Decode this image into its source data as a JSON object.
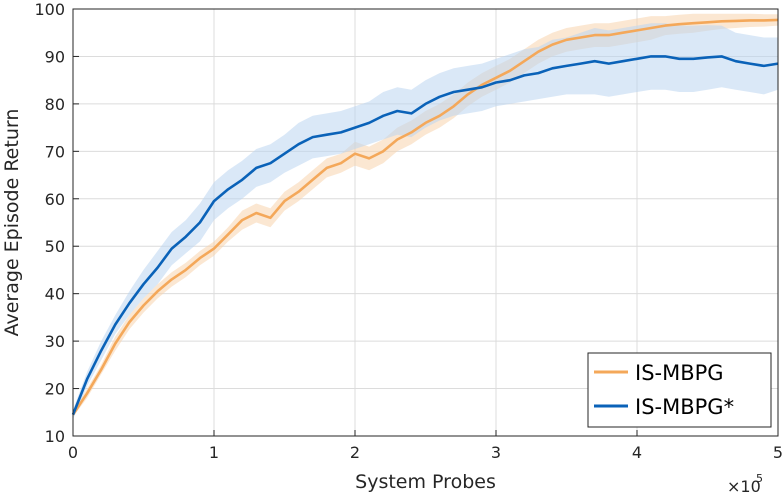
{
  "chart_data": {
    "type": "line",
    "xlabel": "System Probes",
    "ylabel": "Average Episode Return",
    "xlim": [
      0,
      5
    ],
    "ylim": [
      10,
      100
    ],
    "x_multiplier": {
      "base": "×10",
      "exponent": "5"
    },
    "xticks": [
      "0",
      "1",
      "2",
      "3",
      "4",
      "5"
    ],
    "yticks": [
      "10",
      "20",
      "30",
      "40",
      "50",
      "60",
      "70",
      "80",
      "90",
      "100"
    ],
    "grid": true,
    "legend_position": "bottom-right",
    "colors": {
      "IS-MBPG": "#f4a85a",
      "IS-MBPG*": "#0a62b8",
      "IS-MBPG_band": "#f8d3ad",
      "IS-MBPG*_band": "#bcd6f0"
    },
    "x": [
      0,
      0.1,
      0.2,
      0.3,
      0.4,
      0.5,
      0.6,
      0.7,
      0.8,
      0.9,
      1.0,
      1.1,
      1.2,
      1.3,
      1.4,
      1.5,
      1.6,
      1.7,
      1.8,
      1.9,
      2.0,
      2.1,
      2.2,
      2.3,
      2.4,
      2.5,
      2.6,
      2.7,
      2.8,
      2.9,
      3.0,
      3.1,
      3.2,
      3.3,
      3.4,
      3.5,
      3.6,
      3.7,
      3.8,
      3.9,
      4.0,
      4.1,
      4.2,
      4.3,
      4.4,
      4.5,
      4.6,
      4.7,
      4.8,
      4.9,
      5.0
    ],
    "series": [
      {
        "name": "IS-MBPG",
        "values": [
          14.5,
          19,
          24,
          29.5,
          34,
          37.5,
          40.5,
          43,
          45,
          47.5,
          49.5,
          52.5,
          55.5,
          57,
          56,
          59.5,
          61.5,
          64,
          66.5,
          67.5,
          69.5,
          68.5,
          70,
          72.5,
          74,
          76,
          77.5,
          79.5,
          82,
          84,
          85.5,
          87,
          89,
          91,
          92.5,
          93.5,
          94,
          94.5,
          94.5,
          95,
          95.5,
          96,
          96.5,
          96.8,
          97,
          97.2,
          97.4,
          97.5,
          97.6,
          97.6,
          97.7
        ],
        "lower": [
          14,
          18,
          23,
          28,
          32.5,
          36,
          39,
          41.5,
          43.5,
          46,
          48,
          51,
          53.5,
          55,
          54,
          57.5,
          59.5,
          62,
          64.5,
          65.5,
          67,
          66,
          67.5,
          70,
          71.5,
          73.5,
          75,
          77,
          79.5,
          81.5,
          83,
          84.5,
          86.5,
          88.5,
          90,
          91,
          91.5,
          92,
          92,
          92.5,
          93,
          93.5,
          94.5,
          94.8,
          95,
          95.4,
          95.8,
          96,
          96.2,
          96.3,
          96.5
        ],
        "upper": [
          15,
          20,
          25,
          31,
          35.5,
          39,
          42,
          44.5,
          46.5,
          49,
          51,
          54,
          57.5,
          59,
          58,
          61.5,
          63.5,
          66,
          68.5,
          69.5,
          72,
          71,
          72.5,
          75,
          76.5,
          78.5,
          80,
          82,
          84.5,
          86.5,
          88,
          89.5,
          91.5,
          93.5,
          95,
          96,
          96.5,
          97,
          97,
          97.5,
          98,
          98.5,
          98.5,
          98.8,
          99,
          99,
          99,
          99,
          99,
          98.9,
          98.9
        ]
      },
      {
        "name": "IS-MBPG*",
        "values": [
          14.5,
          22,
          28,
          33.5,
          38,
          42,
          45.5,
          49.5,
          52,
          55,
          59.5,
          62,
          64,
          66.5,
          67.5,
          69.5,
          71.5,
          73,
          73.5,
          74,
          75,
          76,
          77.5,
          78.5,
          78,
          80,
          81.5,
          82.5,
          83,
          83.5,
          84.5,
          85,
          86,
          86.5,
          87.5,
          88,
          88.5,
          89,
          88.5,
          89,
          89.5,
          90,
          90,
          89.5,
          89.5,
          89.8,
          90,
          89,
          88.5,
          88,
          88.5
        ],
        "lower": [
          13.5,
          20.5,
          26,
          31.5,
          35.5,
          39,
          42,
          46,
          48.5,
          51,
          55.5,
          58,
          60,
          62.5,
          63.5,
          65.5,
          67,
          68.5,
          69,
          69.5,
          70.5,
          71.5,
          72.5,
          73.5,
          73,
          75,
          76.5,
          77.5,
          78,
          78.5,
          79.5,
          80,
          80.5,
          81,
          81.5,
          82,
          82,
          82,
          81.5,
          82,
          82.5,
          83,
          83,
          82.5,
          82.5,
          83,
          83.5,
          83,
          82.5,
          82,
          83
        ],
        "upper": [
          15.5,
          23.5,
          30,
          35.5,
          40.5,
          45,
          49,
          53,
          55.5,
          59,
          63.5,
          66,
          68,
          70.5,
          71.5,
          73.5,
          76,
          77.5,
          78,
          78.5,
          79.5,
          80.5,
          82.5,
          83.5,
          83,
          85,
          86.5,
          87.5,
          88,
          88.5,
          89.5,
          90.5,
          91.5,
          92,
          93.5,
          94,
          95,
          96,
          95.5,
          96,
          96.5,
          97,
          97,
          96.5,
          96.5,
          96.6,
          96.5,
          95,
          94.5,
          94,
          94
        ]
      }
    ]
  }
}
